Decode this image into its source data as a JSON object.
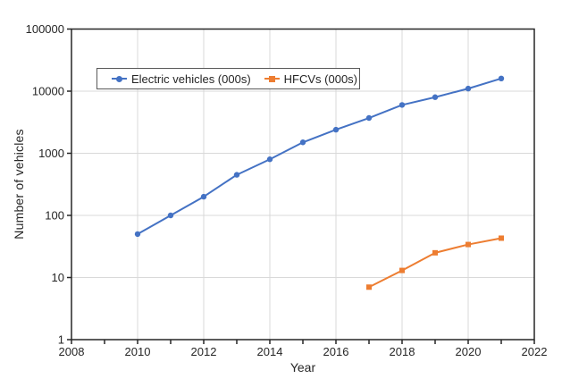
{
  "chart_data": {
    "type": "line",
    "title": "",
    "xlabel": "Year",
    "ylabel": "Number of vehicles",
    "x_axis": {
      "min": 2008,
      "max": 2022,
      "labeled_ticks": [
        2008,
        2010,
        2012,
        2014,
        2016,
        2018,
        2020,
        2022
      ],
      "minor_tick_every": 1
    },
    "y_axis": {
      "scale": "log",
      "min": 1,
      "max": 100000,
      "ticks": [
        1,
        10,
        100,
        1000,
        10000,
        100000
      ]
    },
    "grid": {
      "horizontal_at": [
        10,
        100,
        1000,
        10000
      ],
      "vertical_at": [
        2010,
        2012,
        2014,
        2016,
        2018,
        2020
      ],
      "color": "#D9D9D9"
    },
    "legend_position": "inside-top",
    "series": [
      {
        "name": "Electric vehicles (000s)",
        "color": "#4472C4",
        "marker": "circle",
        "x": [
          2010,
          2011,
          2012,
          2013,
          2014,
          2015,
          2016,
          2017,
          2018,
          2019,
          2020,
          2021
        ],
        "values": [
          50,
          100,
          200,
          450,
          800,
          1500,
          2400,
          3700,
          6000,
          8000,
          11000,
          16000
        ]
      },
      {
        "name": "HFCVs (000s)",
        "color": "#ED7D31",
        "marker": "square",
        "x": [
          2017,
          2018,
          2019,
          2020,
          2021
        ],
        "values": [
          7,
          13,
          25,
          34,
          43
        ]
      }
    ]
  },
  "colors": {
    "axis_line": "#262626",
    "tick_text": "#262626",
    "gridline": "#D9D9D9",
    "legend_border": "#595959",
    "background": "#FFFFFF"
  }
}
